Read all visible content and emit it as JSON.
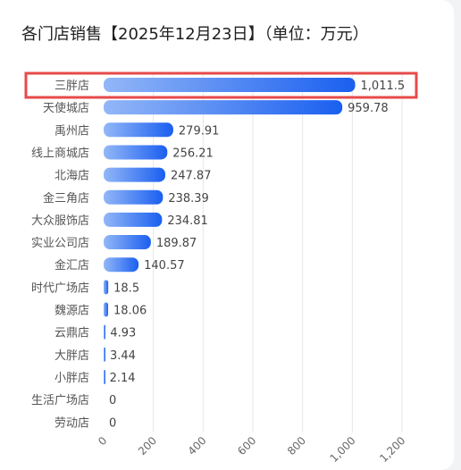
{
  "title": "各门店销售【2025年12月23日】（单位：万元）",
  "chart_data": {
    "type": "bar",
    "orientation": "horizontal",
    "title": "各门店销售【2025年12月23日】（单位：万元）",
    "categories": [
      "三胖店",
      "天使城店",
      "禹州店",
      "线上商城店",
      "北海店",
      "金三角店",
      "大众服饰店",
      "实业公司店",
      "金汇店",
      "时代广场店",
      "魏源店",
      "云鼎店",
      "大胖店",
      "小胖店",
      "生活广场店",
      "劳动店"
    ],
    "values": [
      1011.5,
      959.78,
      279.91,
      256.21,
      247.87,
      238.39,
      234.81,
      189.87,
      140.57,
      18.5,
      18.06,
      4.93,
      3.44,
      2.14,
      0,
      0
    ],
    "value_labels": [
      "1,011.5",
      "959.78",
      "279.91",
      "256.21",
      "247.87",
      "238.39",
      "234.81",
      "189.87",
      "140.57",
      "18.5",
      "18.06",
      "4.93",
      "3.44",
      "2.14",
      "0",
      "0"
    ],
    "xlim": [
      0,
      1200
    ],
    "ticks": [
      0,
      200,
      400,
      600,
      800,
      1000,
      1200
    ],
    "tick_labels": [
      "0",
      "200",
      "400",
      "600",
      "800",
      "1,000",
      "1,200"
    ],
    "grid": true,
    "highlighted_category": "三胖店",
    "colors": {
      "bar_start": "#93b7f7",
      "bar_end": "#1a5ff0",
      "highlight": "#e84a4a",
      "grid": "#e6e6e6"
    }
  }
}
